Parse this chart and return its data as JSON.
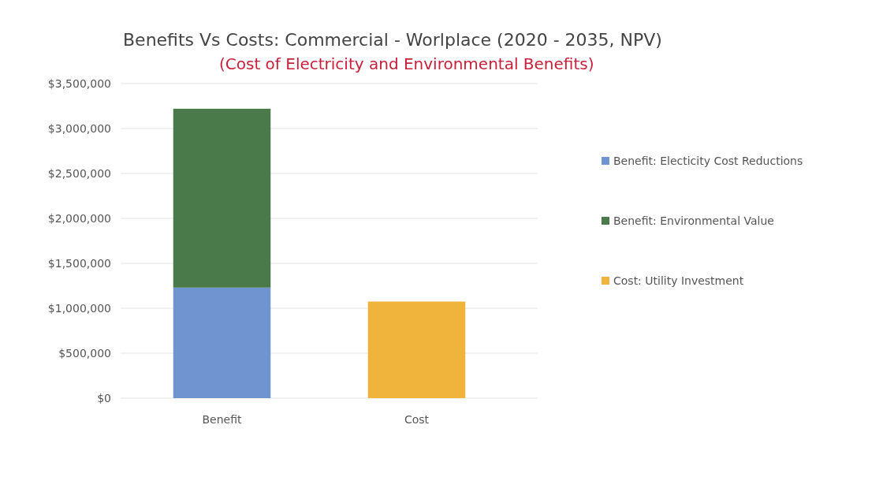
{
  "chart_data": {
    "type": "bar",
    "title": "Benefits Vs Costs: Commercial - Worlplace (2020 - 2035, NPV)",
    "subtitle": "(Cost of Electricity and Environmental Benefits)",
    "categories": [
      "Benefit",
      "Cost"
    ],
    "stacked": true,
    "series": [
      {
        "name": "Benefit: Electicity Cost Reductions",
        "color": "#7094cf",
        "values": [
          1230000,
          null
        ]
      },
      {
        "name": "Benefit: Environmental Value",
        "color": "#4a7a49",
        "values": [
          1990000,
          null
        ]
      },
      {
        "name": "Cost: Utility Investment",
        "color": "#f0b43c",
        "values": [
          null,
          1075000
        ]
      }
    ],
    "ylim": [
      0,
      3500000
    ],
    "yticks": [
      {
        "value": 0,
        "label": "$0"
      },
      {
        "value": 500000,
        "label": "$500,000"
      },
      {
        "value": 1000000,
        "label": "$1,000,000"
      },
      {
        "value": 1500000,
        "label": "$1,500,000"
      },
      {
        "value": 2000000,
        "label": "$2,000,000"
      },
      {
        "value": 2500000,
        "label": "$2,500,000"
      },
      {
        "value": 3000000,
        "label": "$3,000,000"
      },
      {
        "value": 3500000,
        "label": "$3,500,000"
      }
    ],
    "grid": "y",
    "legend": "right"
  }
}
